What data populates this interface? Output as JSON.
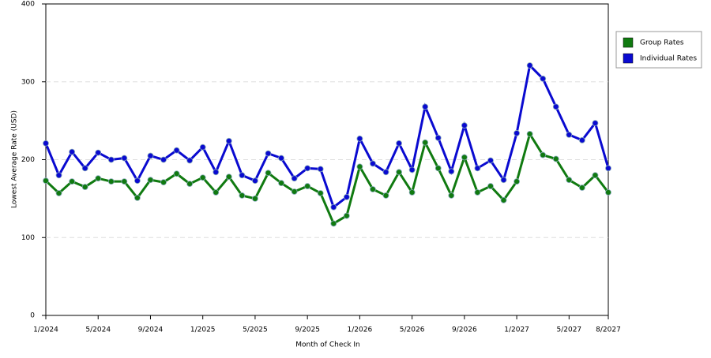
{
  "chart_data": {
    "type": "line",
    "x_label": "Month of Check In",
    "y_label": "Lowest Average Rate (USD)",
    "categories": [
      "1/2024",
      null,
      null,
      null,
      "5/2024",
      null,
      null,
      null,
      "9/2024",
      null,
      null,
      null,
      "1/2025",
      null,
      null,
      null,
      "5/2025",
      null,
      null,
      null,
      "9/2025",
      null,
      null,
      null,
      "1/2026",
      null,
      null,
      null,
      "5/2026",
      null,
      null,
      null,
      "9/2026",
      null,
      null,
      null,
      "1/2027",
      null,
      null,
      null,
      "5/2027",
      null,
      null,
      "8/2027"
    ],
    "series": [
      {
        "name": "Group Rates",
        "color": "#107a10",
        "values": [
          173,
          157,
          172,
          165,
          176,
          172,
          172,
          151,
          174,
          171,
          182,
          169,
          177,
          158,
          178,
          154,
          150,
          183,
          170,
          159,
          166,
          157,
          118,
          128,
          191,
          162,
          154,
          184,
          158,
          222,
          189,
          154,
          203,
          158,
          166,
          148,
          172,
          233,
          206,
          201,
          174,
          164,
          180,
          158
        ]
      },
      {
        "name": "Individual Rates",
        "color": "#0a0ad0",
        "values": [
          221,
          180,
          210,
          189,
          209,
          200,
          202,
          173,
          205,
          200,
          212,
          199,
          216,
          184,
          224,
          180,
          173,
          208,
          202,
          176,
          189,
          188,
          139,
          152,
          227,
          195,
          184,
          221,
          187,
          268,
          228,
          185,
          244,
          189,
          199,
          174,
          234,
          321,
          304,
          268,
          232,
          225,
          247,
          189
        ]
      }
    ],
    "ylim": [
      0,
      400
    ],
    "yticks": [
      0,
      100,
      200,
      300,
      400
    ],
    "grid": true,
    "legend": "right"
  }
}
